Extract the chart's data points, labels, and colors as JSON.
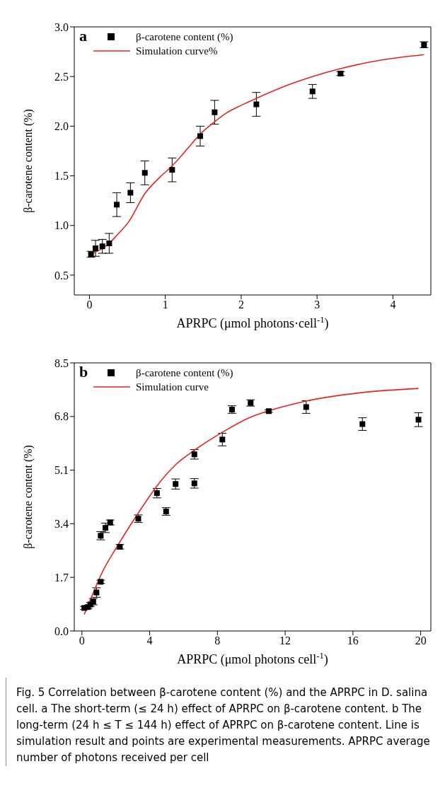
{
  "chart_data": [
    {
      "type": "scatter",
      "xlabel": "APRPC (μmol photons·cell$^{-1}$)",
      "ylabel": "β-carotene content (%)",
      "annotations": [
        "a"
      ],
      "xlim": [
        -0.2,
        4.5
      ],
      "xticks": [
        0,
        1,
        2,
        3,
        4
      ],
      "ylim": [
        0.3,
        3.0
      ],
      "yticks": [
        {
          "value": 0.5,
          "label": "0.5"
        },
        {
          "value": 1.0,
          "label": "1.0"
        },
        {
          "value": 1.5,
          "label": "1.5"
        },
        {
          "value": 2.0,
          "label": "2.0"
        },
        {
          "value": 2.5,
          "label": "2.5"
        },
        {
          "value": 3.0,
          "label": "3.0"
        }
      ],
      "grid": false,
      "legend": "top left",
      "marker": "square",
      "series": [
        {
          "name": "β-carotene content (%)",
          "color": "#000000",
          "x": [
            0.02,
            0.08,
            0.17,
            0.26,
            0.36,
            0.54,
            0.73,
            1.09,
            1.46,
            1.65,
            2.2,
            2.94,
            3.31,
            4.41
          ],
          "values": [
            0.71,
            0.77,
            0.79,
            0.82,
            1.21,
            1.33,
            1.53,
            1.56,
            1.9,
            2.14,
            2.22,
            2.35,
            2.53,
            2.82
          ],
          "errors": [
            0.03,
            0.08,
            0.07,
            0.1,
            0.12,
            0.1,
            0.12,
            0.12,
            0.1,
            0.12,
            0.12,
            0.07,
            0.02,
            0.03
          ]
        },
        {
          "name": "Simulation curve%",
          "type": "line",
          "color": "#e8231f",
          "line_style": "solid",
          "marker": "none",
          "x": [
            0.02,
            0.26,
            0.36,
            0.52,
            0.73,
            0.92,
            1.09,
            1.3,
            1.46,
            1.61,
            1.8,
            2.0,
            2.2,
            2.6,
            2.94,
            3.31,
            3.8,
            4.41
          ],
          "values": [
            0.71,
            0.82,
            0.9,
            1.04,
            1.32,
            1.48,
            1.6,
            1.78,
            1.92,
            2.02,
            2.13,
            2.21,
            2.28,
            2.41,
            2.5,
            2.58,
            2.66,
            2.72
          ]
        }
      ]
    },
    {
      "type": "scatter",
      "xlabel": "APRPC (μmol photons cell$^{-1}$)",
      "ylabel": "β-carotene content (%)",
      "annotations": [
        "b",
        "Fig. 5  Correlation between β-carotene content (%) and the APRPC in D. salina cell. a The short-term (≤ 24 h) effect of APRPC on β-carotene content. b The long-term (24 h ≤ T ≤ 144 h) effect of APRPC on β-carotene content. Line is simulation result and points are experimental measurements. APRPC average number of photons received per cell"
      ],
      "xlim": [
        -0.45,
        20.6
      ],
      "xticks": [
        0,
        4,
        8,
        12,
        16,
        20
      ],
      "ylim": [
        0,
        8.5
      ],
      "yticks": [
        {
          "value": 0,
          "label": "0.0"
        },
        {
          "value": 1.7,
          "label": "1.7"
        },
        {
          "value": 3.4,
          "label": "3.4"
        },
        {
          "value": 5.1,
          "label": "5.1"
        },
        {
          "value": 6.8,
          "label": "6.8"
        },
        {
          "value": 8.5,
          "label": "8.5"
        }
      ],
      "grid": false,
      "legend": "top left",
      "marker": "square",
      "series": [
        {
          "name": "β-carotene content (%)",
          "color": "#000000",
          "x": [
            0.14,
            0.36,
            0.5,
            0.67,
            0.86,
            1.11,
            1.11,
            1.39,
            1.67,
            2.24,
            3.33,
            4.43,
            4.97,
            5.53,
            6.64,
            6.64,
            8.29,
            8.86,
            9.96,
            11.03,
            13.24,
            16.56,
            19.87
          ],
          "values": [
            0.73,
            0.76,
            0.84,
            0.93,
            1.22,
            1.56,
            3.02,
            3.27,
            3.44,
            2.67,
            3.56,
            4.37,
            3.79,
            4.66,
            5.6,
            4.68,
            6.07,
            7.02,
            7.23,
            6.97,
            7.1,
            6.56,
            6.7
          ],
          "errors": [
            0.05,
            0.05,
            0.06,
            0.1,
            0.15,
            0.05,
            0.13,
            0.15,
            0.08,
            0.07,
            0.12,
            0.15,
            0.12,
            0.16,
            0.15,
            0.15,
            0.2,
            0.12,
            0.1,
            0.04,
            0.2,
            0.2,
            0.22
          ]
        },
        {
          "name": "Simulation curve",
          "type": "line",
          "color": "#e8231f",
          "line_style": "solid",
          "marker": "none",
          "x": [
            0.14,
            0.86,
            1.11,
            2.07,
            3.33,
            4.43,
            5.53,
            6.64,
            8.29,
            9.96,
            11.03,
            13.24,
            16.56,
            19.87
          ],
          "values": [
            0.53,
            1.45,
            1.76,
            2.67,
            3.74,
            4.6,
            5.27,
            5.73,
            6.3,
            6.78,
            6.98,
            7.29,
            7.56,
            7.69
          ]
        }
      ]
    }
  ]
}
